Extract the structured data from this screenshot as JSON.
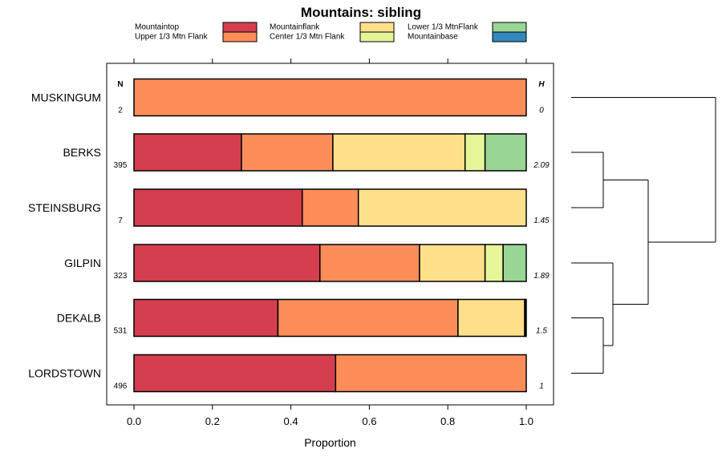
{
  "chart_data": {
    "type": "bar",
    "stacked": true,
    "orientation": "horizontal",
    "title": "Mountains: sibling",
    "xlabel": "Proportion",
    "xlim": [
      -0.07,
      1.07
    ],
    "xticks": [
      0,
      0.2,
      0.4,
      0.6,
      0.8,
      1
    ],
    "xtick_labels": [
      "0.0",
      "0.2",
      "0.4",
      "0.6",
      "0.8",
      "1.0"
    ],
    "n_header": "N",
    "h_header": "H",
    "legend": [
      {
        "name": "Mountaintop",
        "color": "#D53E4F"
      },
      {
        "name": "Upper 1/3 Mtn Flank",
        "color": "#FC8D59"
      },
      {
        "name": "Mountainflank",
        "color": "#FEE08B"
      },
      {
        "name": "Center 1/3 Mtn Flank",
        "color": "#E6F598"
      },
      {
        "name": "Lower 1/3 MtnFlank",
        "color": "#99D594"
      },
      {
        "name": "Mountainbase",
        "color": "#3288BD"
      }
    ],
    "rows": [
      {
        "label": "MUSKINGUM",
        "n": "2",
        "h": "0",
        "values": [
          0.0,
          1.0,
          0.0,
          0.0,
          0.0,
          0.0
        ]
      },
      {
        "label": "BERKS",
        "n": "395",
        "h": "2.09",
        "values": [
          0.274,
          0.233,
          0.337,
          0.051,
          0.105,
          0.0
        ]
      },
      {
        "label": "STEINSBURG",
        "n": "7",
        "h": "1.45",
        "values": [
          0.429,
          0.143,
          0.428,
          0.0,
          0.0,
          0.0
        ]
      },
      {
        "label": "GILPIN",
        "n": "323",
        "h": "1.89",
        "values": [
          0.474,
          0.254,
          0.167,
          0.046,
          0.059,
          0.0
        ]
      },
      {
        "label": "DEKALB",
        "n": "531",
        "h": "1.5",
        "values": [
          0.367,
          0.459,
          0.17,
          0.002,
          0.002,
          0.0
        ]
      },
      {
        "label": "LORDSTOWN",
        "n": "496",
        "h": "1",
        "values": [
          0.514,
          0.486,
          0.0,
          0.0,
          0.0,
          0.0
        ]
      }
    ],
    "dendrogram": {
      "type": "hierarchical-clustering",
      "merges": [
        {
          "left": "BERKS",
          "right": "STEINSBURG"
        },
        {
          "left": "DEKALB",
          "right": "LORDSTOWN"
        },
        {
          "left": "GILPIN",
          "right": "DEKALB+LORDSTOWN"
        },
        {
          "left": "BERKS+STEINSBURG",
          "right": "GILPIN+DEKALB+LORDSTOWN"
        },
        {
          "left": "MUSKINGUM",
          "right": "ALL-OTHERS"
        }
      ]
    }
  }
}
